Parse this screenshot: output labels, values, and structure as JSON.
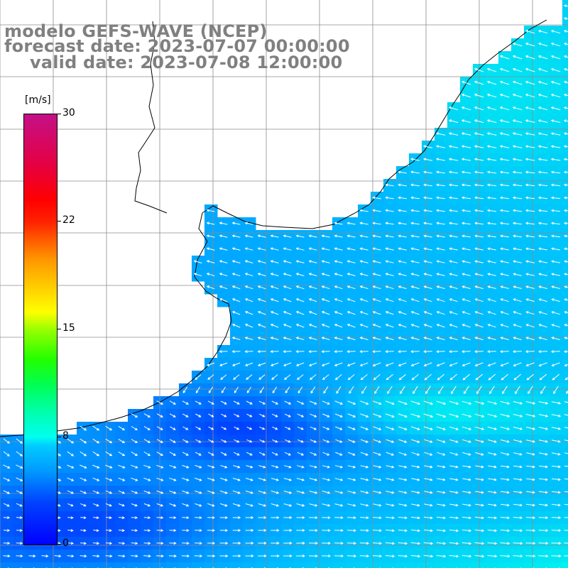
{
  "header": {
    "model_line": "modelo GEFS-WAVE (NCEP)",
    "forecast_line": "forecast date: 2023-07-07 00:00:00",
    "valid_line": "valid date: 2023-07-08 12:00:00"
  },
  "colorbar": {
    "unit": "[m/s]",
    "min": 0,
    "max": 30,
    "ticks": [
      "30",
      "22",
      "15",
      "8",
      "0"
    ],
    "colors": [
      "#0000ff",
      "#00aaff",
      "#00ffee",
      "#00ff44",
      "#ffff00",
      "#ff8800",
      "#ff0000",
      "#c41088"
    ]
  },
  "map": {
    "variable": "wind speed and direction",
    "land_color": "#ffffff",
    "coastline_color": "#000000",
    "grid_color": "#808080",
    "wind_field_summary": {
      "speed_range_mps": [
        1,
        8
      ],
      "weak_core_color": "#0022ff",
      "strong_edge_color": "#00ffee"
    }
  }
}
